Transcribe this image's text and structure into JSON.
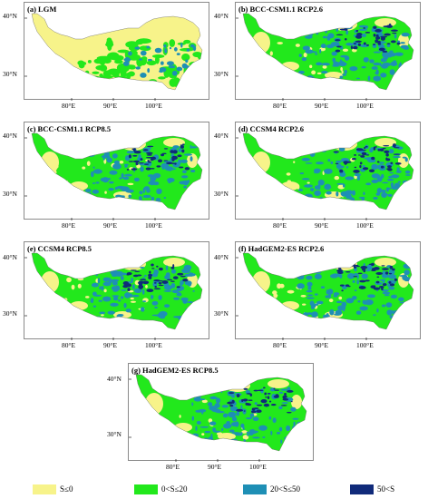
{
  "panels": [
    {
      "title": "(a) LGM",
      "lat_labels": [
        "40°N",
        "30°N"
      ],
      "lon_labels": [
        "80°E",
        "90°E",
        "100°E"
      ],
      "tone": "lgm"
    },
    {
      "title": "(b) BCC-CSM1.1 RCP2.6",
      "lat_labels": [
        "40°N",
        "30°N"
      ],
      "lon_labels": [
        "80°E",
        "90°E",
        "100°E"
      ],
      "tone": "future"
    },
    {
      "title": "(c) BCC-CSM1.1 RCP8.5",
      "lat_labels": [
        "40°N",
        "30°N"
      ],
      "lon_labels": [
        "80°E",
        "90°E",
        "100°E"
      ],
      "tone": "future"
    },
    {
      "title": "(d) CCSM4 RCP2.6",
      "lat_labels": [
        "40°N",
        "30°N"
      ],
      "lon_labels": [
        "80°E",
        "90°E",
        "100°E"
      ],
      "tone": "future"
    },
    {
      "title": "(e) CCSM4 RCP8.5",
      "lat_labels": [
        "40°N",
        "30°N"
      ],
      "lon_labels": [
        "80°E",
        "90°E",
        "100°E"
      ],
      "tone": "future"
    },
    {
      "title": "(f) HadGEM2-ES RCP2.6",
      "lat_labels": [
        "40°N",
        "30°N"
      ],
      "lon_labels": [
        "80°E",
        "90°E",
        "100°E"
      ],
      "tone": "future"
    },
    {
      "title": "(g) HadGEM2-ES RCP8.5",
      "lat_labels": [
        "40°N",
        "30°N"
      ],
      "lon_labels": [
        "80°E",
        "90°E",
        "100°E"
      ],
      "tone": "future"
    }
  ],
  "legend": [
    {
      "label": "S≤0",
      "color": "#f7f38a"
    },
    {
      "label": "0<S≤20",
      "color": "#22e81c"
    },
    {
      "label": "20<S≤50",
      "color": "#1e8fb5"
    },
    {
      "label": "50<S",
      "color": "#102a7a"
    }
  ],
  "colors": {
    "lowland": "#f7f38a",
    "low": "#22e81c",
    "mid": "#1e8fb5",
    "high": "#102a7a"
  }
}
